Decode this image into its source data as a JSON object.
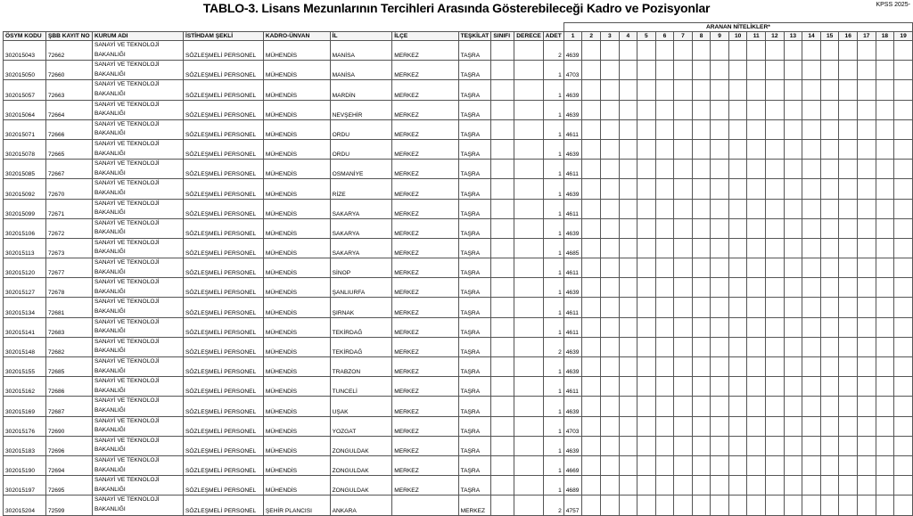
{
  "header": {
    "title": "TABLO-3. Lisans Mezunlarının Tercihleri Arasında Gösterebileceği Kadro ve Pozisyonlar",
    "corner": "KPSS 2025-"
  },
  "table": {
    "group_header": "ARANAN NİTELİKLER*",
    "columns": [
      "ÖSYM KODU",
      "ŞBB KAYIT NO",
      "KURUM ADI",
      "İSTİHDAM ŞEKLİ",
      "KADRO-ÜNVAN",
      "İL",
      "İLÇE",
      "TEŞKİLAT",
      "SINIFI",
      "DERECE",
      "ADET"
    ],
    "qualification_columns": [
      1,
      2,
      3,
      4,
      5,
      6,
      7,
      8,
      9,
      10,
      11,
      12,
      13,
      14,
      15,
      16,
      17,
      18,
      19
    ],
    "rows": [
      [
        302015043,
        72662,
        "SANAYİ VE TEKNOLOJİ BAKANLIĞI",
        "SÖZLEŞMELİ PERSONEL",
        "MÜHENDİS",
        "MANİSA",
        "MERKEZ",
        "TAŞRA",
        null,
        null,
        2,
        4639
      ],
      [
        302015050,
        72660,
        "SANAYİ VE TEKNOLOJİ BAKANLIĞI",
        "SÖZLEŞMELİ PERSONEL",
        "MÜHENDİS",
        "MANİSA",
        "MERKEZ",
        "TAŞRA",
        null,
        null,
        1,
        4703
      ],
      [
        302015057,
        72663,
        "SANAYİ VE TEKNOLOJİ BAKANLIĞI",
        "SÖZLEŞMELİ PERSONEL",
        "MÜHENDİS",
        "MARDİN",
        "MERKEZ",
        "TAŞRA",
        null,
        null,
        1,
        4639
      ],
      [
        302015064,
        72664,
        "SANAYİ VE TEKNOLOJİ BAKANLIĞI",
        "SÖZLEŞMELİ PERSONEL",
        "MÜHENDİS",
        "NEVŞEHİR",
        "MERKEZ",
        "TAŞRA",
        null,
        null,
        1,
        4639
      ],
      [
        302015071,
        72666,
        "SANAYİ VE TEKNOLOJİ BAKANLIĞI",
        "SÖZLEŞMELİ PERSONEL",
        "MÜHENDİS",
        "ORDU",
        "MERKEZ",
        "TAŞRA",
        null,
        null,
        1,
        4611
      ],
      [
        302015078,
        72665,
        "SANAYİ VE TEKNOLOJİ BAKANLIĞI",
        "SÖZLEŞMELİ PERSONEL",
        "MÜHENDİS",
        "ORDU",
        "MERKEZ",
        "TAŞRA",
        null,
        null,
        1,
        4639
      ],
      [
        302015085,
        72667,
        "SANAYİ VE TEKNOLOJİ BAKANLIĞI",
        "SÖZLEŞMELİ PERSONEL",
        "MÜHENDİS",
        "OSMANİYE",
        "MERKEZ",
        "TAŞRA",
        null,
        null,
        1,
        4611
      ],
      [
        302015092,
        72670,
        "SANAYİ VE TEKNOLOJİ BAKANLIĞI",
        "SÖZLEŞMELİ PERSONEL",
        "MÜHENDİS",
        "RİZE",
        "MERKEZ",
        "TAŞRA",
        null,
        null,
        1,
        4639
      ],
      [
        302015099,
        72671,
        "SANAYİ VE TEKNOLOJİ BAKANLIĞI",
        "SÖZLEŞMELİ PERSONEL",
        "MÜHENDİS",
        "SAKARYA",
        "MERKEZ",
        "TAŞRA",
        null,
        null,
        1,
        4611
      ],
      [
        302015106,
        72672,
        "SANAYİ VE TEKNOLOJİ BAKANLIĞI",
        "SÖZLEŞMELİ PERSONEL",
        "MÜHENDİS",
        "SAKARYA",
        "MERKEZ",
        "TAŞRA",
        null,
        null,
        1,
        4639
      ],
      [
        302015113,
        72673,
        "SANAYİ VE TEKNOLOJİ BAKANLIĞI",
        "SÖZLEŞMELİ PERSONEL",
        "MÜHENDİS",
        "SAKARYA",
        "MERKEZ",
        "TAŞRA",
        null,
        null,
        1,
        4685
      ],
      [
        302015120,
        72677,
        "SANAYİ VE TEKNOLOJİ BAKANLIĞI",
        "SÖZLEŞMELİ PERSONEL",
        "MÜHENDİS",
        "SİNOP",
        "MERKEZ",
        "TAŞRA",
        null,
        null,
        1,
        4611
      ],
      [
        302015127,
        72678,
        "SANAYİ VE TEKNOLOJİ BAKANLIĞI",
        "SÖZLEŞMELİ PERSONEL",
        "MÜHENDİS",
        "ŞANLIURFA",
        "MERKEZ",
        "TAŞRA",
        null,
        null,
        1,
        4639
      ],
      [
        302015134,
        72681,
        "SANAYİ VE TEKNOLOJİ BAKANLIĞI",
        "SÖZLEŞMELİ PERSONEL",
        "MÜHENDİS",
        "ŞIRNAK",
        "MERKEZ",
        "TAŞRA",
        null,
        null,
        1,
        4611
      ],
      [
        302015141,
        72683,
        "SANAYİ VE TEKNOLOJİ BAKANLIĞI",
        "SÖZLEŞMELİ PERSONEL",
        "MÜHENDİS",
        "TEKİRDAĞ",
        "MERKEZ",
        "TAŞRA",
        null,
        null,
        1,
        4611
      ],
      [
        302015148,
        72682,
        "SANAYİ VE TEKNOLOJİ BAKANLIĞI",
        "SÖZLEŞMELİ PERSONEL",
        "MÜHENDİS",
        "TEKİRDAĞ",
        "MERKEZ",
        "TAŞRA",
        null,
        null,
        2,
        4639
      ],
      [
        302015155,
        72685,
        "SANAYİ VE TEKNOLOJİ BAKANLIĞI",
        "SÖZLEŞMELİ PERSONEL",
        "MÜHENDİS",
        "TRABZON",
        "MERKEZ",
        "TAŞRA",
        null,
        null,
        1,
        4639
      ],
      [
        302015162,
        72686,
        "SANAYİ VE TEKNOLOJİ BAKANLIĞI",
        "SÖZLEŞMELİ PERSONEL",
        "MÜHENDİS",
        "TUNCELİ",
        "MERKEZ",
        "TAŞRA",
        null,
        null,
        1,
        4611
      ],
      [
        302015169,
        72687,
        "SANAYİ VE TEKNOLOJİ BAKANLIĞI",
        "SÖZLEŞMELİ PERSONEL",
        "MÜHENDİS",
        "UŞAK",
        "MERKEZ",
        "TAŞRA",
        null,
        null,
        1,
        4639
      ],
      [
        302015176,
        72690,
        "SANAYİ VE TEKNOLOJİ BAKANLIĞI",
        "SÖZLEŞMELİ PERSONEL",
        "MÜHENDİS",
        "YOZGAT",
        "MERKEZ",
        "TAŞRA",
        null,
        null,
        1,
        4703
      ],
      [
        302015183,
        72696,
        "SANAYİ VE TEKNOLOJİ BAKANLIĞI",
        "SÖZLEŞMELİ PERSONEL",
        "MÜHENDİS",
        "ZONGULDAK",
        "MERKEZ",
        "TAŞRA",
        null,
        null,
        1,
        4639
      ],
      [
        302015190,
        72694,
        "SANAYİ VE TEKNOLOJİ BAKANLIĞI",
        "SÖZLEŞMELİ PERSONEL",
        "MÜHENDİS",
        "ZONGULDAK",
        "MERKEZ",
        "TAŞRA",
        null,
        null,
        1,
        4669
      ],
      [
        302015197,
        72695,
        "SANAYİ VE TEKNOLOJİ BAKANLIĞI",
        "SÖZLEŞMELİ PERSONEL",
        "MÜHENDİS",
        "ZONGULDAK",
        "MERKEZ",
        "TAŞRA",
        null,
        null,
        1,
        4689
      ],
      [
        302015204,
        72599,
        "SANAYİ VE TEKNOLOJİ BAKANLIĞI",
        "SÖZLEŞMELİ PERSONEL",
        "ŞEHİR PLANCISI",
        "ANKARA",
        null,
        "MERKEZ",
        null,
        null,
        2,
        4757
      ]
    ]
  }
}
